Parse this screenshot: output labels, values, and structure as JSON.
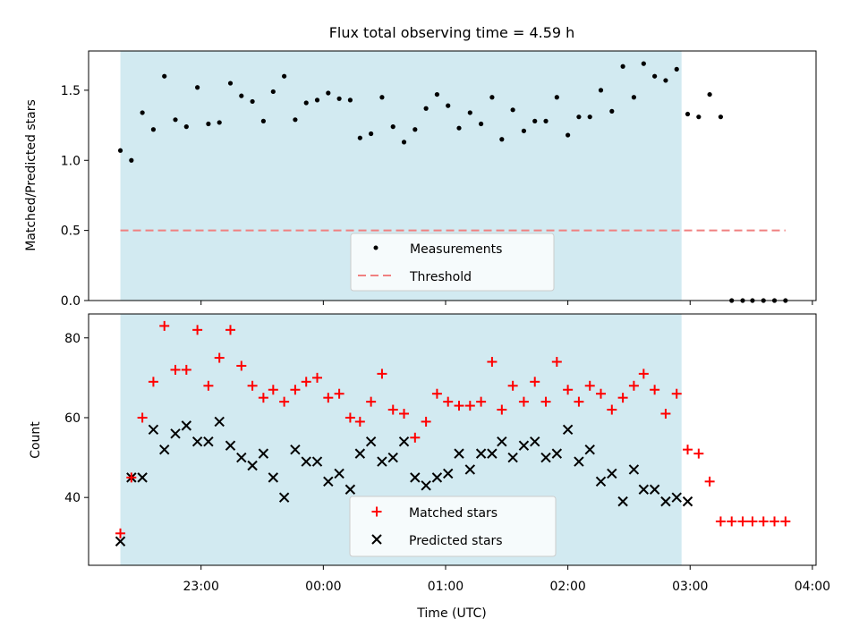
{
  "title": "Flux total observing time = 4.59 h",
  "xlabel": "Time (UTC)",
  "xticks": [
    "23:00",
    "00:00",
    "01:00",
    "02:00",
    "03:00",
    "04:00"
  ],
  "colors": {
    "shade": "#add8e6",
    "measure": "#000000",
    "threshold": "#f08080",
    "matched": "#ff0000",
    "predicted": "#000000"
  },
  "chart_data": [
    {
      "type": "scatter",
      "ylabel": "Matched/Predicted stars",
      "ylim": [
        0,
        1.78
      ],
      "yticks": [
        0.0,
        0.5,
        1.0,
        1.5
      ],
      "ytick_labels": [
        "0.0",
        "0.5",
        "1.0",
        "1.5"
      ],
      "xlim_hours": [
        -1.92,
        4.03
      ],
      "shaded_interval_hours": [
        -1.66,
        2.93
      ],
      "threshold": {
        "value": 0.5,
        "x_range_hours": [
          -1.66,
          3.78
        ]
      },
      "legend": {
        "position": "lower center",
        "entries": [
          "Measurements",
          "Threshold"
        ]
      },
      "series": [
        {
          "name": "Measurements",
          "x": [
            -1.66,
            -1.57,
            -1.48,
            -1.39,
            -1.3,
            -1.21,
            -1.12,
            -1.03,
            -0.94,
            -0.85,
            -0.76,
            -0.67,
            -0.58,
            -0.49,
            -0.41,
            -0.32,
            -0.23,
            -0.14,
            -0.05,
            0.04,
            0.13,
            0.22,
            0.3,
            0.39,
            0.48,
            0.57,
            0.66,
            0.75,
            0.84,
            0.93,
            1.02,
            1.11,
            1.2,
            1.29,
            1.38,
            1.46,
            1.55,
            1.64,
            1.73,
            1.82,
            1.91,
            2.0,
            2.09,
            2.18,
            2.27,
            2.36,
            2.45,
            2.54,
            2.62,
            2.71,
            2.8,
            2.89,
            2.98,
            3.07,
            3.16,
            3.25,
            3.34,
            3.43,
            3.51,
            3.6,
            3.69,
            3.78
          ],
          "y": [
            1.07,
            1.0,
            1.34,
            1.22,
            1.6,
            1.29,
            1.24,
            1.52,
            1.26,
            1.27,
            1.55,
            1.46,
            1.42,
            1.28,
            1.49,
            1.6,
            1.29,
            1.41,
            1.43,
            1.48,
            1.44,
            1.43,
            1.16,
            1.19,
            1.45,
            1.24,
            1.13,
            1.22,
            1.37,
            1.47,
            1.39,
            1.23,
            1.34,
            1.26,
            1.45,
            1.15,
            1.36,
            1.21,
            1.28,
            1.28,
            1.45,
            1.18,
            1.31,
            1.31,
            1.5,
            1.35,
            1.67,
            1.45,
            1.69,
            1.6,
            1.57,
            1.65,
            1.33,
            1.31,
            1.47,
            1.31,
            0.0,
            0.0,
            0.0,
            0.0,
            0.0,
            0.0
          ]
        }
      ]
    },
    {
      "type": "scatter",
      "ylabel": "Count",
      "ylim": [
        23,
        86
      ],
      "yticks": [
        40,
        60,
        80
      ],
      "ytick_labels": [
        "40",
        "60",
        "80"
      ],
      "xlim_hours": [
        -1.92,
        4.03
      ],
      "shaded_interval_hours": [
        -1.66,
        2.93
      ],
      "legend": {
        "position": "lower center",
        "entries": [
          "Matched stars",
          "Predicted stars"
        ]
      },
      "series": [
        {
          "name": "Matched stars",
          "marker": "plus",
          "x": [
            -1.66,
            -1.57,
            -1.48,
            -1.39,
            -1.3,
            -1.21,
            -1.12,
            -1.03,
            -0.94,
            -0.85,
            -0.76,
            -0.67,
            -0.58,
            -0.49,
            -0.41,
            -0.32,
            -0.23,
            -0.14,
            -0.05,
            0.04,
            0.13,
            0.22,
            0.3,
            0.39,
            0.48,
            0.57,
            0.66,
            0.75,
            0.84,
            0.93,
            1.02,
            1.11,
            1.2,
            1.29,
            1.38,
            1.46,
            1.55,
            1.64,
            1.73,
            1.82,
            1.91,
            2.0,
            2.09,
            2.18,
            2.27,
            2.36,
            2.45,
            2.54,
            2.62,
            2.71,
            2.8,
            2.89,
            2.98,
            3.07,
            3.16,
            3.25,
            3.34,
            3.43,
            3.51,
            3.6,
            3.69,
            3.78
          ],
          "y": [
            31,
            45,
            60,
            69,
            83,
            72,
            72,
            82,
            68,
            75,
            82,
            73,
            68,
            65,
            67,
            64,
            67,
            69,
            70,
            65,
            66,
            60,
            59,
            64,
            71,
            62,
            61,
            55,
            59,
            66,
            64,
            63,
            63,
            64,
            74,
            62,
            68,
            64,
            69,
            64,
            74,
            67,
            64,
            68,
            66,
            62,
            65,
            68,
            71,
            67,
            61,
            66,
            52,
            51,
            44,
            34,
            34,
            34,
            34,
            34,
            34,
            34
          ]
        },
        {
          "name": "Predicted stars",
          "marker": "x",
          "x": [
            -1.66,
            -1.57,
            -1.48,
            -1.39,
            -1.3,
            -1.21,
            -1.12,
            -1.03,
            -0.94,
            -0.85,
            -0.76,
            -0.67,
            -0.58,
            -0.49,
            -0.41,
            -0.32,
            -0.23,
            -0.14,
            -0.05,
            0.04,
            0.13,
            0.22,
            0.3,
            0.39,
            0.48,
            0.57,
            0.66,
            0.75,
            0.84,
            0.93,
            1.02,
            1.11,
            1.2,
            1.29,
            1.38,
            1.46,
            1.55,
            1.64,
            1.73,
            1.82,
            1.91,
            2.0,
            2.09,
            2.18,
            2.27,
            2.36,
            2.45,
            2.54,
            2.62,
            2.71,
            2.8,
            2.89,
            2.98
          ],
          "y": [
            29,
            45,
            45,
            57,
            52,
            56,
            58,
            54,
            54,
            59,
            53,
            50,
            48,
            51,
            45,
            40,
            52,
            49,
            49,
            44,
            46,
            42,
            51,
            54,
            49,
            50,
            54,
            45,
            43,
            45,
            46,
            51,
            47,
            51,
            51,
            54,
            50,
            53,
            54,
            50,
            51,
            57,
            49,
            52,
            44,
            46,
            39,
            47,
            42,
            42,
            39,
            40,
            39
          ]
        }
      ]
    }
  ]
}
